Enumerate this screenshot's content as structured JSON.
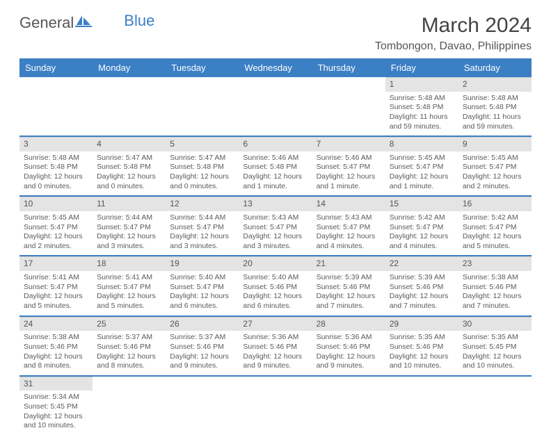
{
  "logo": {
    "word1": "General",
    "word2": "Blue"
  },
  "title": "March 2024",
  "location": "Tombongon, Davao, Philippines",
  "colors": {
    "header_bg": "#3b7fc4",
    "header_text": "#ffffff",
    "daynum_bg": "#e4e4e4",
    "row_border": "#3b7fc4",
    "text": "#5a5a5a"
  },
  "weekdays": [
    "Sunday",
    "Monday",
    "Tuesday",
    "Wednesday",
    "Thursday",
    "Friday",
    "Saturday"
  ],
  "weeks": [
    [
      null,
      null,
      null,
      null,
      null,
      {
        "n": "1",
        "sr": "5:48 AM",
        "ss": "5:48 PM",
        "dl": "11 hours and 59 minutes."
      },
      {
        "n": "2",
        "sr": "5:48 AM",
        "ss": "5:48 PM",
        "dl": "11 hours and 59 minutes."
      }
    ],
    [
      {
        "n": "3",
        "sr": "5:48 AM",
        "ss": "5:48 PM",
        "dl": "12 hours and 0 minutes."
      },
      {
        "n": "4",
        "sr": "5:47 AM",
        "ss": "5:48 PM",
        "dl": "12 hours and 0 minutes."
      },
      {
        "n": "5",
        "sr": "5:47 AM",
        "ss": "5:48 PM",
        "dl": "12 hours and 0 minutes."
      },
      {
        "n": "6",
        "sr": "5:46 AM",
        "ss": "5:48 PM",
        "dl": "12 hours and 1 minute."
      },
      {
        "n": "7",
        "sr": "5:46 AM",
        "ss": "5:47 PM",
        "dl": "12 hours and 1 minute."
      },
      {
        "n": "8",
        "sr": "5:45 AM",
        "ss": "5:47 PM",
        "dl": "12 hours and 1 minute."
      },
      {
        "n": "9",
        "sr": "5:45 AM",
        "ss": "5:47 PM",
        "dl": "12 hours and 2 minutes."
      }
    ],
    [
      {
        "n": "10",
        "sr": "5:45 AM",
        "ss": "5:47 PM",
        "dl": "12 hours and 2 minutes."
      },
      {
        "n": "11",
        "sr": "5:44 AM",
        "ss": "5:47 PM",
        "dl": "12 hours and 3 minutes."
      },
      {
        "n": "12",
        "sr": "5:44 AM",
        "ss": "5:47 PM",
        "dl": "12 hours and 3 minutes."
      },
      {
        "n": "13",
        "sr": "5:43 AM",
        "ss": "5:47 PM",
        "dl": "12 hours and 3 minutes."
      },
      {
        "n": "14",
        "sr": "5:43 AM",
        "ss": "5:47 PM",
        "dl": "12 hours and 4 minutes."
      },
      {
        "n": "15",
        "sr": "5:42 AM",
        "ss": "5:47 PM",
        "dl": "12 hours and 4 minutes."
      },
      {
        "n": "16",
        "sr": "5:42 AM",
        "ss": "5:47 PM",
        "dl": "12 hours and 5 minutes."
      }
    ],
    [
      {
        "n": "17",
        "sr": "5:41 AM",
        "ss": "5:47 PM",
        "dl": "12 hours and 5 minutes."
      },
      {
        "n": "18",
        "sr": "5:41 AM",
        "ss": "5:47 PM",
        "dl": "12 hours and 5 minutes."
      },
      {
        "n": "19",
        "sr": "5:40 AM",
        "ss": "5:47 PM",
        "dl": "12 hours and 6 minutes."
      },
      {
        "n": "20",
        "sr": "5:40 AM",
        "ss": "5:46 PM",
        "dl": "12 hours and 6 minutes."
      },
      {
        "n": "21",
        "sr": "5:39 AM",
        "ss": "5:46 PM",
        "dl": "12 hours and 7 minutes."
      },
      {
        "n": "22",
        "sr": "5:39 AM",
        "ss": "5:46 PM",
        "dl": "12 hours and 7 minutes."
      },
      {
        "n": "23",
        "sr": "5:38 AM",
        "ss": "5:46 PM",
        "dl": "12 hours and 7 minutes."
      }
    ],
    [
      {
        "n": "24",
        "sr": "5:38 AM",
        "ss": "5:46 PM",
        "dl": "12 hours and 8 minutes."
      },
      {
        "n": "25",
        "sr": "5:37 AM",
        "ss": "5:46 PM",
        "dl": "12 hours and 8 minutes."
      },
      {
        "n": "26",
        "sr": "5:37 AM",
        "ss": "5:46 PM",
        "dl": "12 hours and 9 minutes."
      },
      {
        "n": "27",
        "sr": "5:36 AM",
        "ss": "5:46 PM",
        "dl": "12 hours and 9 minutes."
      },
      {
        "n": "28",
        "sr": "5:36 AM",
        "ss": "5:46 PM",
        "dl": "12 hours and 9 minutes."
      },
      {
        "n": "29",
        "sr": "5:35 AM",
        "ss": "5:46 PM",
        "dl": "12 hours and 10 minutes."
      },
      {
        "n": "30",
        "sr": "5:35 AM",
        "ss": "5:45 PM",
        "dl": "12 hours and 10 minutes."
      }
    ],
    [
      {
        "n": "31",
        "sr": "5:34 AM",
        "ss": "5:45 PM",
        "dl": "12 hours and 10 minutes."
      },
      null,
      null,
      null,
      null,
      null,
      null
    ]
  ],
  "labels": {
    "sunrise": "Sunrise:",
    "sunset": "Sunset:",
    "daylight": "Daylight:"
  }
}
